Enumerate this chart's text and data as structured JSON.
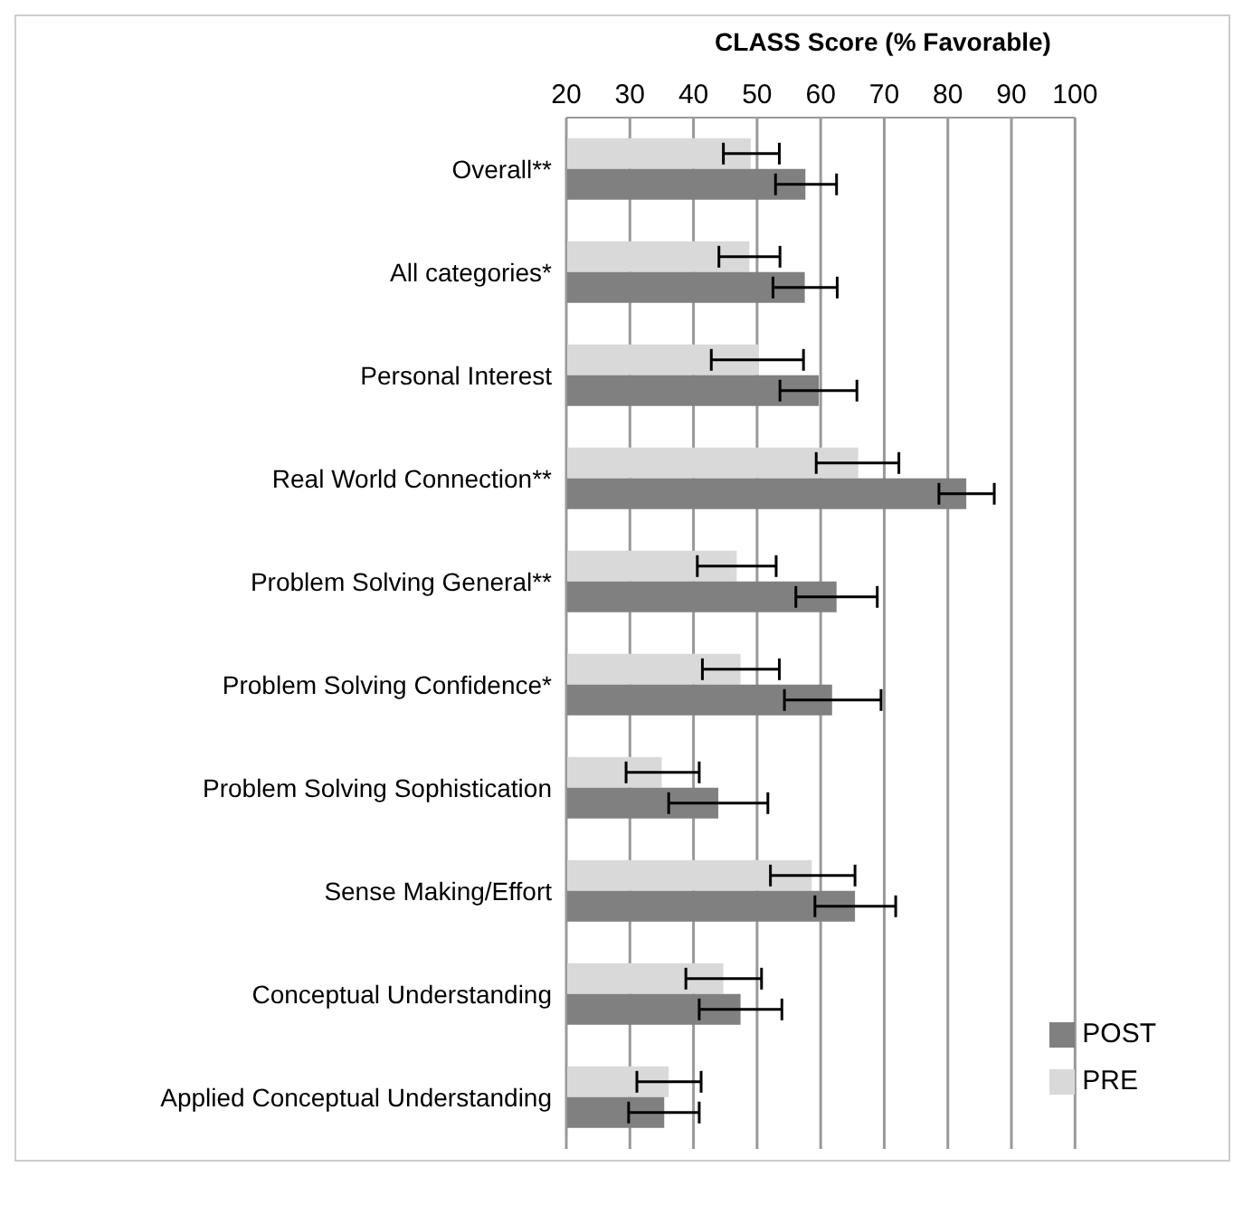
{
  "chart_data": {
    "type": "bar",
    "orientation": "horizontal",
    "xlabel": "CLASS Score (% Favorable)",
    "categories": [
      "Overall**",
      "All categories*",
      "Personal Interest",
      "Real World Connection**",
      "Problem Solving General**",
      "Problem Solving Confidence*",
      "Problem Solving Sophistication",
      "Sense Making/Effort",
      "Conceptual Understanding",
      "Applied Conceptual Understanding"
    ],
    "series": [
      {
        "name": "PRE",
        "color": "#d9d9d9",
        "values": [
          49.0,
          48.8,
          50.2,
          65.9,
          46.8,
          47.4,
          35.0,
          58.6,
          44.7,
          36.1
        ],
        "errors": [
          [
            44.7,
            53.5
          ],
          [
            44.0,
            53.6
          ],
          [
            42.8,
            57.3
          ],
          [
            59.3,
            72.3
          ],
          [
            40.6,
            53.0
          ],
          [
            41.4,
            53.5
          ],
          [
            29.4,
            40.9
          ],
          [
            52.1,
            65.4
          ],
          [
            38.8,
            50.7
          ],
          [
            31.1,
            41.2
          ]
        ]
      },
      {
        "name": "POST",
        "color": "#808080",
        "values": [
          57.6,
          57.5,
          59.7,
          82.9,
          62.5,
          61.8,
          43.9,
          65.4,
          47.4,
          35.4
        ],
        "errors": [
          [
            52.9,
            62.5
          ],
          [
            52.5,
            62.6
          ],
          [
            53.6,
            65.7
          ],
          [
            78.6,
            87.3
          ],
          [
            56.1,
            68.9
          ],
          [
            54.3,
            69.5
          ],
          [
            36.1,
            51.7
          ],
          [
            59.1,
            71.8
          ],
          [
            40.9,
            53.9
          ],
          [
            29.8,
            40.9
          ]
        ]
      }
    ],
    "xlim": [
      20,
      100
    ],
    "xticks": [
      20,
      30,
      40,
      50,
      60,
      70,
      80,
      90,
      100
    ],
    "grid": "x",
    "legend": "bottom right"
  }
}
